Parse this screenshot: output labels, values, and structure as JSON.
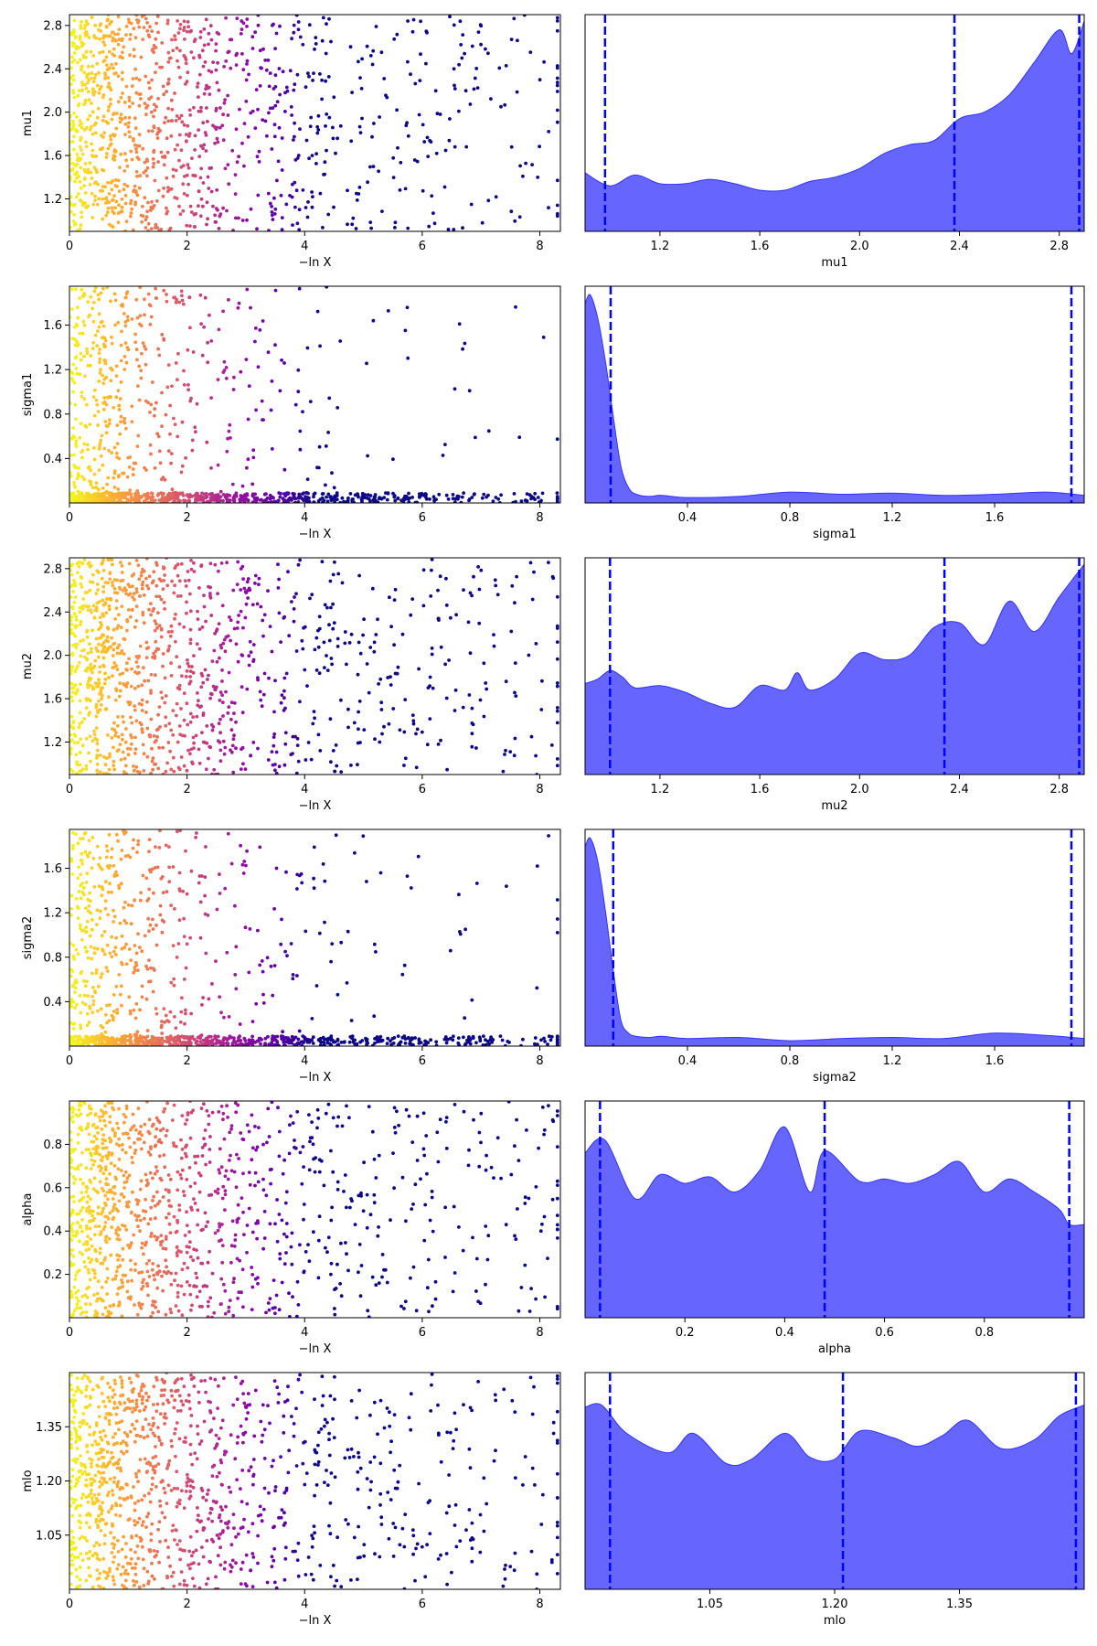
{
  "figure": {
    "title": ""
  },
  "colors": {
    "kde_fill": "#6666ff",
    "kde_edge": "#3333ff",
    "quantile_line": "#0000ff",
    "axes": "#000000",
    "cmap": "plasma"
  },
  "chart_data": [
    {
      "type": "scatter",
      "name": "run-mu1",
      "ylabel": "mu1",
      "xlabel": "−ln X",
      "xlim": [
        0,
        8.35
      ],
      "ylim": [
        0.9,
        2.9
      ],
      "xticks": [
        0,
        2,
        4,
        6,
        8
      ],
      "xtick_labels": [
        "0",
        "2",
        "4",
        "6",
        "8"
      ],
      "yticks": [
        1.2,
        1.6,
        2.0,
        2.4,
        2.8
      ],
      "ytick_labels": [
        "1.2",
        "1.6",
        "2.0",
        "2.4",
        "2.8"
      ],
      "low_density": false,
      "color_by": "−ln X"
    },
    {
      "type": "area",
      "name": "kde-mu1",
      "xlabel": "mu1",
      "xlim": [
        0.9,
        2.9
      ],
      "ylim": [
        0,
        1
      ],
      "xticks": [
        1.2,
        1.6,
        2.0,
        2.4,
        2.8
      ],
      "xtick_labels": [
        "1.2",
        "1.6",
        "2.0",
        "2.4",
        "2.8"
      ],
      "x": [
        0.9,
        1.0,
        1.1,
        1.2,
        1.3,
        1.4,
        1.5,
        1.6,
        1.7,
        1.8,
        1.9,
        2.0,
        2.1,
        2.2,
        2.3,
        2.4,
        2.5,
        2.6,
        2.7,
        2.8,
        2.85,
        2.9
      ],
      "values": [
        0.27,
        0.21,
        0.26,
        0.22,
        0.22,
        0.24,
        0.22,
        0.19,
        0.19,
        0.23,
        0.25,
        0.29,
        0.36,
        0.4,
        0.42,
        0.52,
        0.55,
        0.63,
        0.78,
        0.93,
        0.82,
        0.97
      ],
      "quantiles": [
        0.98,
        2.38,
        2.88
      ]
    },
    {
      "type": "scatter",
      "name": "run-sigma1",
      "ylabel": "sigma1",
      "xlabel": "−ln X",
      "xlim": [
        0,
        8.35
      ],
      "ylim": [
        0,
        1.95
      ],
      "xticks": [
        0,
        2,
        4,
        6,
        8
      ],
      "xtick_labels": [
        "0",
        "2",
        "4",
        "6",
        "8"
      ],
      "yticks": [
        0.4,
        0.8,
        1.2,
        1.6
      ],
      "ytick_labels": [
        "0.4",
        "0.8",
        "1.2",
        "1.6"
      ],
      "low_density": true,
      "color_by": "−ln X"
    },
    {
      "type": "area",
      "name": "kde-sigma1",
      "xlabel": "sigma1",
      "xlim": [
        0,
        1.95
      ],
      "ylim": [
        0,
        1
      ],
      "xticks": [
        0.4,
        0.8,
        1.2,
        1.6
      ],
      "xtick_labels": [
        "0.4",
        "0.8",
        "1.2",
        "1.6"
      ],
      "x": [
        0.0,
        0.02,
        0.05,
        0.08,
        0.11,
        0.14,
        0.17,
        0.2,
        0.25,
        0.3,
        0.4,
        0.6,
        0.8,
        1.0,
        1.2,
        1.4,
        1.6,
        1.8,
        1.95
      ],
      "values": [
        0.92,
        0.96,
        0.85,
        0.65,
        0.4,
        0.17,
        0.07,
        0.04,
        0.03,
        0.035,
        0.025,
        0.03,
        0.05,
        0.04,
        0.045,
        0.035,
        0.04,
        0.05,
        0.035
      ],
      "quantiles": [
        0.1,
        1.9
      ]
    },
    {
      "type": "scatter",
      "name": "run-mu2",
      "ylabel": "mu2",
      "xlabel": "−ln X",
      "xlim": [
        0,
        8.35
      ],
      "ylim": [
        0.9,
        2.9
      ],
      "xticks": [
        0,
        2,
        4,
        6,
        8
      ],
      "xtick_labels": [
        "0",
        "2",
        "4",
        "6",
        "8"
      ],
      "yticks": [
        1.2,
        1.6,
        2.0,
        2.4,
        2.8
      ],
      "ytick_labels": [
        "1.2",
        "1.6",
        "2.0",
        "2.4",
        "2.8"
      ],
      "low_density": false,
      "color_by": "−ln X"
    },
    {
      "type": "area",
      "name": "kde-mu2",
      "xlabel": "mu2",
      "xlim": [
        0.9,
        2.9
      ],
      "ylim": [
        0,
        1
      ],
      "x": [
        0.9,
        0.95,
        1.0,
        1.05,
        1.1,
        1.2,
        1.3,
        1.4,
        1.5,
        1.6,
        1.7,
        1.75,
        1.8,
        1.9,
        2.0,
        2.1,
        2.2,
        2.3,
        2.4,
        2.5,
        2.6,
        2.7,
        2.8,
        2.9
      ],
      "xticks": [
        1.2,
        1.6,
        2.0,
        2.4,
        2.8
      ],
      "xtick_labels": [
        "1.2",
        "1.6",
        "2.0",
        "2.4",
        "2.8"
      ],
      "values": [
        0.42,
        0.44,
        0.48,
        0.45,
        0.4,
        0.41,
        0.38,
        0.33,
        0.31,
        0.41,
        0.39,
        0.47,
        0.39,
        0.44,
        0.56,
        0.53,
        0.55,
        0.68,
        0.7,
        0.6,
        0.8,
        0.66,
        0.82,
        0.97
      ],
      "quantiles": [
        1.0,
        2.34,
        2.88
      ]
    },
    {
      "type": "scatter",
      "name": "run-sigma2",
      "ylabel": "sigma2",
      "xlabel": "−ln X",
      "xlim": [
        0,
        8.35
      ],
      "ylim": [
        0,
        1.95
      ],
      "xticks": [
        0,
        2,
        4,
        6,
        8
      ],
      "xtick_labels": [
        "0",
        "2",
        "4",
        "6",
        "8"
      ],
      "yticks": [
        0.4,
        0.8,
        1.2,
        1.6
      ],
      "ytick_labels": [
        "0.4",
        "0.8",
        "1.2",
        "1.6"
      ],
      "low_density": true,
      "color_by": "−ln X"
    },
    {
      "type": "area",
      "name": "kde-sigma2",
      "xlabel": "sigma2",
      "xlim": [
        0,
        1.95
      ],
      "ylim": [
        0,
        1
      ],
      "xticks": [
        0.4,
        0.8,
        1.2,
        1.6
      ],
      "xtick_labels": [
        "0.4",
        "0.8",
        "1.2",
        "1.6"
      ],
      "x": [
        0.0,
        0.02,
        0.05,
        0.08,
        0.11,
        0.14,
        0.17,
        0.2,
        0.25,
        0.3,
        0.4,
        0.6,
        0.8,
        1.0,
        1.2,
        1.4,
        1.6,
        1.8,
        1.95
      ],
      "values": [
        0.92,
        0.96,
        0.85,
        0.62,
        0.35,
        0.12,
        0.06,
        0.045,
        0.04,
        0.045,
        0.035,
        0.04,
        0.025,
        0.035,
        0.04,
        0.035,
        0.06,
        0.05,
        0.035
      ],
      "quantiles": [
        0.11,
        1.9
      ]
    },
    {
      "type": "scatter",
      "name": "run-alpha",
      "ylabel": "alpha",
      "xlabel": "−ln X",
      "xlim": [
        0,
        8.35
      ],
      "ylim": [
        0,
        1.0
      ],
      "xticks": [
        0,
        2,
        4,
        6,
        8
      ],
      "xtick_labels": [
        "0",
        "2",
        "4",
        "6",
        "8"
      ],
      "yticks": [
        0.2,
        0.4,
        0.6,
        0.8
      ],
      "ytick_labels": [
        "0.2",
        "0.4",
        "0.6",
        "0.8"
      ],
      "low_density": false,
      "color_by": "−ln X"
    },
    {
      "type": "area",
      "name": "kde-alpha",
      "xlabel": "alpha",
      "xlim": [
        0,
        1.0
      ],
      "ylim": [
        0,
        1
      ],
      "xticks": [
        0.2,
        0.4,
        0.6,
        0.8
      ],
      "xtick_labels": [
        "0.2",
        "0.4",
        "0.6",
        "0.8"
      ],
      "x": [
        0.0,
        0.04,
        0.1,
        0.15,
        0.2,
        0.25,
        0.3,
        0.35,
        0.4,
        0.45,
        0.48,
        0.55,
        0.6,
        0.65,
        0.7,
        0.75,
        0.8,
        0.85,
        0.9,
        0.95,
        0.97,
        1.0
      ],
      "values": [
        0.76,
        0.82,
        0.55,
        0.66,
        0.62,
        0.65,
        0.58,
        0.68,
        0.88,
        0.58,
        0.77,
        0.63,
        0.64,
        0.62,
        0.66,
        0.72,
        0.58,
        0.64,
        0.58,
        0.5,
        0.43,
        0.43
      ],
      "quantiles": [
        0.03,
        0.48,
        0.97
      ]
    },
    {
      "type": "scatter",
      "name": "run-mlo",
      "ylabel": "mlo",
      "xlabel": "−ln X",
      "xlim": [
        0,
        8.35
      ],
      "ylim": [
        0.9,
        1.5
      ],
      "xticks": [
        0,
        2,
        4,
        6,
        8
      ],
      "xtick_labels": [
        "0",
        "2",
        "4",
        "6",
        "8"
      ],
      "yticks": [
        1.05,
        1.2,
        1.35
      ],
      "ytick_labels": [
        "1.05",
        "1.20",
        "1.35"
      ],
      "low_density": false,
      "color_by": "−ln X"
    },
    {
      "type": "area",
      "name": "kde-mlo",
      "xlabel": "mlo",
      "xlim": [
        0.9,
        1.5
      ],
      "ylim": [
        0,
        1
      ],
      "xticks": [
        1.05,
        1.2,
        1.35
      ],
      "xtick_labels": [
        "1.05",
        "1.20",
        "1.35"
      ],
      "x": [
        0.9,
        0.92,
        0.95,
        1.0,
        1.03,
        1.07,
        1.1,
        1.14,
        1.17,
        1.2,
        1.23,
        1.27,
        1.3,
        1.33,
        1.36,
        1.4,
        1.44,
        1.47,
        1.5
      ],
      "values": [
        0.84,
        0.85,
        0.72,
        0.63,
        0.72,
        0.58,
        0.6,
        0.72,
        0.61,
        0.6,
        0.73,
        0.7,
        0.66,
        0.71,
        0.78,
        0.65,
        0.69,
        0.8,
        0.85
      ],
      "quantiles": [
        0.93,
        1.21,
        1.49
      ]
    }
  ]
}
